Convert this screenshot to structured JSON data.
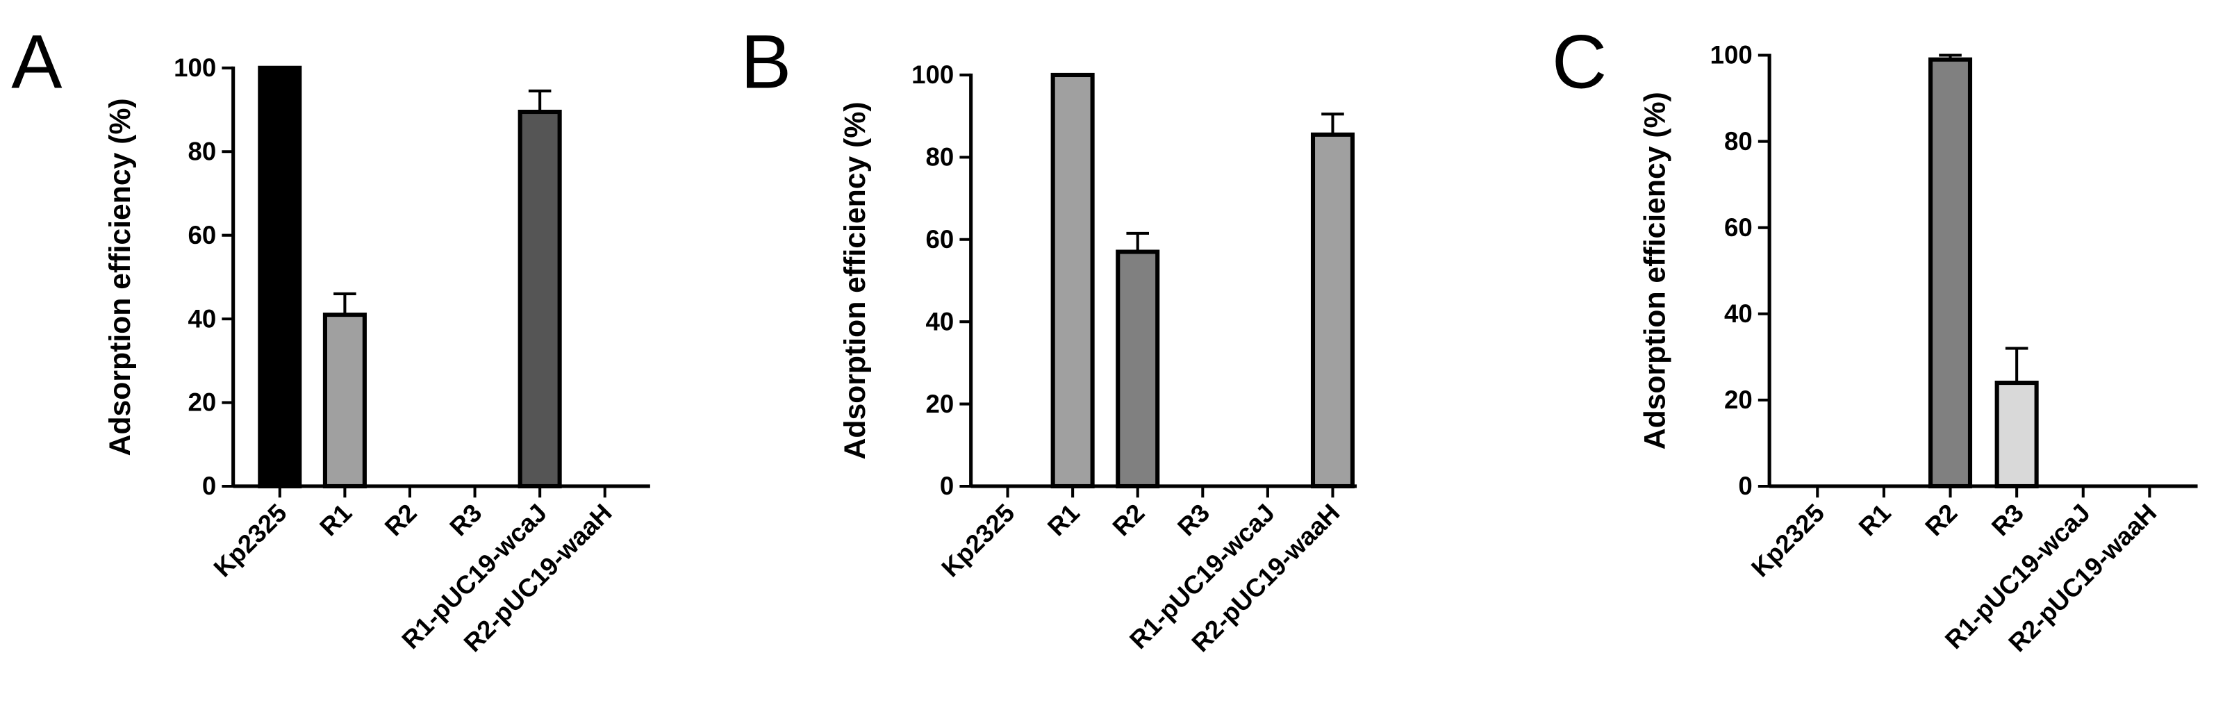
{
  "chart_data": [
    {
      "type": "bar",
      "panel_label": "A",
      "y_label": "Adsorption efficiency (%)",
      "categories": [
        "Kp2325",
        "R1",
        "R2",
        "R3",
        "R1-pUC19-wcaJ",
        "R2-pUC19-waaH"
      ],
      "values": [
        100,
        41,
        0,
        0,
        89.5,
        0
      ],
      "errors": [
        null,
        5,
        null,
        null,
        5,
        null
      ],
      "colors": [
        "#000000",
        "#a0a0a0",
        "#808080",
        "#a0a0a0",
        "#555555",
        "#a0a0a0"
      ],
      "ylim": [
        0,
        100
      ],
      "yticks": [
        0,
        20,
        40,
        60,
        80,
        100
      ]
    },
    {
      "type": "bar",
      "panel_label": "B",
      "y_label": "Adsorption efficiency (%)",
      "categories": [
        "Kp2325",
        "R1",
        "R2",
        "R3",
        "R1-pUC19-wcaJ",
        "R2-pUC19-waaH"
      ],
      "values": [
        0,
        100,
        57,
        0,
        0,
        85.5
      ],
      "errors": [
        null,
        null,
        4.5,
        null,
        null,
        5
      ],
      "colors": [
        "#000000",
        "#a0a0a0",
        "#808080",
        "#a0a0a0",
        "#555555",
        "#a0a0a0"
      ],
      "ylim": [
        0,
        100
      ],
      "yticks": [
        0,
        20,
        40,
        60,
        80,
        100
      ]
    },
    {
      "type": "bar",
      "panel_label": "C",
      "y_label": "Adsorption efficiency (%)",
      "categories": [
        "Kp2325",
        "R1",
        "R2",
        "R3",
        "R1-pUC19-wcaJ",
        "R2-pUC19-waaH"
      ],
      "values": [
        0,
        0,
        99,
        24,
        0,
        0
      ],
      "errors": [
        null,
        null,
        1,
        8,
        null,
        null
      ],
      "colors": [
        "#000000",
        "#a0a0a0",
        "#808080",
        "#d9d9d9",
        "#555555",
        "#a0a0a0"
      ],
      "ylim": [
        0,
        100
      ],
      "yticks": [
        0,
        20,
        40,
        60,
        80,
        100
      ]
    }
  ]
}
